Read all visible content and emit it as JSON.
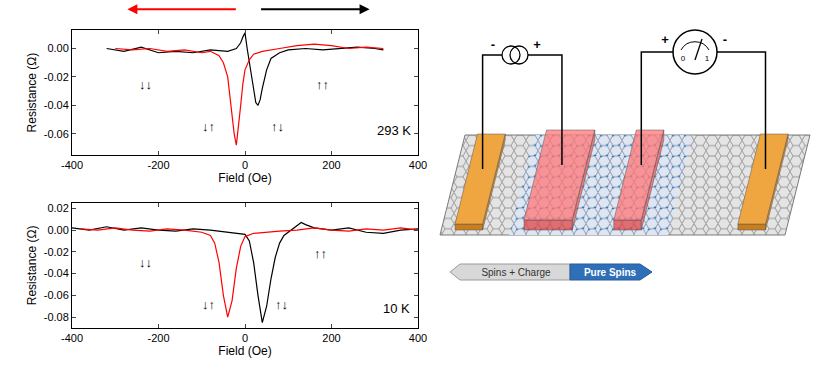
{
  "chart_data": [
    {
      "type": "line",
      "xlabel": "Field (Oe)",
      "ylabel": "Resistance (Ω)",
      "xlim": [
        -400,
        400
      ],
      "xticks": [
        -400,
        -200,
        0,
        200,
        400
      ],
      "ylim": [
        -0.075,
        0.013
      ],
      "yticks": [
        -0.06,
        -0.04,
        -0.02,
        {
          "value": 0,
          "label": "0.00"
        }
      ],
      "grid": false,
      "series": [
        {
          "color": "#000000",
          "direction": "right",
          "x": [
            -320,
            -280,
            -240,
            -200,
            -160,
            -120,
            -80,
            -40,
            -20,
            -10,
            -5,
            0,
            5,
            10,
            15,
            20,
            25,
            30,
            35,
            40,
            50,
            60,
            80,
            100,
            140,
            180,
            220,
            260,
            300,
            320
          ],
          "values": [
            0,
            -0.002,
            0.001,
            -0.003,
            -0.002,
            -0.003,
            -0.001,
            -0.002,
            0,
            0.004,
            0.008,
            0.011,
            0,
            -0.01,
            -0.02,
            -0.03,
            -0.038,
            -0.04,
            -0.036,
            -0.028,
            -0.015,
            -0.007,
            -0.003,
            -0.001,
            0,
            -0.001,
            0,
            0.001,
            0,
            -0.001
          ]
        },
        {
          "color": "#ff0000",
          "direction": "left",
          "x": [
            320,
            280,
            240,
            200,
            160,
            120,
            80,
            40,
            20,
            10,
            0,
            -5,
            -10,
            -15,
            -20,
            -25,
            -30,
            -35,
            -40,
            -50,
            -60,
            -80,
            -100,
            -140,
            -180,
            -220,
            -260,
            -300
          ],
          "values": [
            0,
            0.001,
            0,
            0.002,
            0.003,
            0.002,
            0,
            -0.002,
            -0.004,
            -0.008,
            -0.015,
            -0.025,
            -0.04,
            -0.055,
            -0.068,
            -0.06,
            -0.045,
            -0.03,
            -0.02,
            -0.01,
            -0.005,
            -0.002,
            -0.003,
            -0.001,
            -0.002,
            0,
            -0.001,
            0
          ]
        }
      ],
      "annotations": [
        {
          "text": "↓↓",
          "x": -230,
          "y": -0.025
        },
        {
          "text": "↓↑",
          "x": -85,
          "y": -0.055
        },
        {
          "text": "↑↓",
          "x": 75,
          "y": -0.055
        },
        {
          "text": "↑↑",
          "x": 180,
          "y": -0.025
        },
        {
          "text": "293 K",
          "x": 345,
          "y": -0.058
        }
      ]
    },
    {
      "type": "line",
      "xlabel": "Field (Oe)",
      "ylabel": "Resistance (Ω)",
      "xlim": [
        -400,
        400
      ],
      "xticks": [
        -400,
        -200,
        0,
        200,
        400
      ],
      "ylim": [
        -0.09,
        0.025
      ],
      "yticks": [
        -0.08,
        -0.06,
        -0.04,
        -0.02,
        {
          "value": 0,
          "label": "0.00"
        },
        0.02
      ],
      "grid": false,
      "series": [
        {
          "color": "#000000",
          "x": [
            -400,
            -360,
            -320,
            -280,
            -240,
            -200,
            -160,
            -120,
            -80,
            -40,
            0,
            10,
            20,
            30,
            40,
            50,
            60,
            70,
            80,
            90,
            100,
            120,
            130,
            140,
            160,
            200,
            240,
            280,
            320,
            360,
            400
          ],
          "values": [
            0.002,
            0,
            0.003,
            0,
            0.002,
            0,
            -0.001,
            0.001,
            0,
            -0.002,
            -0.004,
            -0.01,
            -0.03,
            -0.06,
            -0.085,
            -0.07,
            -0.045,
            -0.025,
            -0.012,
            -0.005,
            -0.002,
            0.004,
            0.007,
            0.005,
            0.002,
            0,
            0.002,
            -0.002,
            -0.003,
            0,
            0.001
          ]
        },
        {
          "color": "#ff0000",
          "x": [
            400,
            360,
            320,
            280,
            240,
            200,
            160,
            120,
            80,
            40,
            20,
            0,
            -10,
            -20,
            -30,
            -40,
            -50,
            -60,
            -70,
            -80,
            -100,
            -140,
            -180,
            -220,
            -260,
            -300,
            -340,
            -380
          ],
          "values": [
            0,
            0.002,
            0,
            0.001,
            -0.001,
            0,
            0.002,
            0,
            -0.001,
            -0.002,
            -0.003,
            -0.006,
            -0.015,
            -0.035,
            -0.065,
            -0.08,
            -0.06,
            -0.03,
            -0.012,
            -0.005,
            -0.002,
            0,
            0.001,
            -0.001,
            0,
            0.002,
            0,
            0.001
          ]
        }
      ],
      "annotations": [
        {
          "text": "↓↓",
          "x": -230,
          "y": -0.03
        },
        {
          "text": "↓↑",
          "x": -85,
          "y": -0.068
        },
        {
          "text": "↑↓",
          "x": 85,
          "y": -0.068
        },
        {
          "text": "↑↑",
          "x": 175,
          "y": -0.022
        },
        {
          "text": "10 K",
          "x": 350,
          "y": -0.072
        }
      ]
    }
  ],
  "diagram": {
    "source": {
      "minus": "-",
      "plus": "+"
    },
    "meter": {
      "plus": "+",
      "minus": "-",
      "scale": [
        "0",
        "1"
      ]
    },
    "regions": [
      "Spins + Charge",
      "Pure Spins"
    ]
  }
}
